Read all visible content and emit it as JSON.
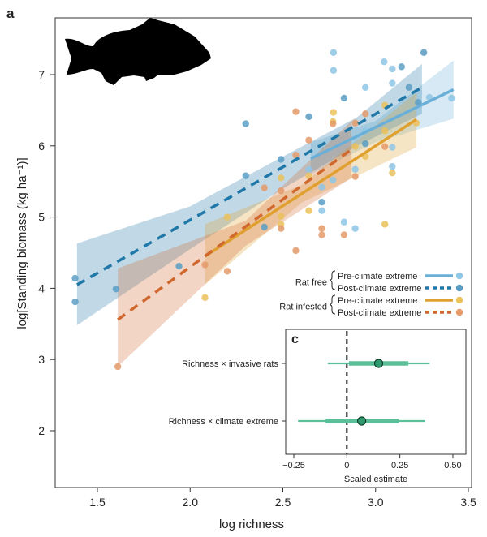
{
  "chart_data": [
    {
      "type": "scatter",
      "panel_label": "a",
      "xlabel": "log richness",
      "ylabel": "log[Standing biomass (kg ha⁻¹)]",
      "xlim": [
        1.28,
        3.55
      ],
      "ylim": [
        1.3,
        7.8
      ],
      "xticks": [
        "1.5",
        "2.0",
        "2.5",
        "3.0",
        "3.5"
      ],
      "yticks": [
        "2",
        "3",
        "4",
        "5",
        "6",
        "7"
      ],
      "legend_placement": "right",
      "series": [
        {
          "name": "Rat free — Pre-climate extreme",
          "group": "Rat free",
          "period": "Pre-climate extreme",
          "color": "#6aafd8",
          "point_color": "#8ec6e6",
          "dash": false,
          "points": [
            [
              2.773,
              7.31
            ],
            [
              2.773,
              7.06
            ],
            [
              3.046,
              7.18
            ],
            [
              3.09,
              7.08
            ],
            [
              2.945,
              6.82
            ],
            [
              3.09,
              6.88
            ],
            [
              3.41,
              6.67
            ],
            [
              3.29,
              6.68
            ],
            [
              2.64,
              5.67
            ],
            [
              2.89,
              5.67
            ],
            [
              2.77,
              5.52
            ],
            [
              2.71,
              5.42
            ],
            [
              2.71,
              5.09
            ],
            [
              2.83,
              4.93
            ],
            [
              2.89,
              4.84
            ],
            [
              3.09,
              5.98
            ],
            [
              3.09,
              5.71
            ],
            [
              2.945,
              6.21
            ]
          ],
          "line": [
            [
              2.65,
              5.82
            ],
            [
              3.42,
              6.79
            ]
          ],
          "band": [
            [
              2.65,
              5.6,
              6.05
            ],
            [
              3.0,
              6.05,
              6.35
            ],
            [
              3.42,
              6.38,
              7.2
            ]
          ]
        },
        {
          "name": "Rat free — Post-climate extreme",
          "group": "Rat free",
          "period": "Post-climate extreme",
          "color": "#1f78a8",
          "point_color": "#5a9dc4",
          "dash": true,
          "points": [
            [
              3.26,
              7.31
            ],
            [
              3.14,
              7.11
            ],
            [
              3.18,
              6.82
            ],
            [
              2.83,
              6.67
            ],
            [
              2.3,
              6.31
            ],
            [
              2.64,
              6.41
            ],
            [
              2.49,
              5.81
            ],
            [
              2.3,
              5.58
            ],
            [
              2.71,
              5.21
            ],
            [
              2.4,
              4.86
            ],
            [
              1.94,
              4.31
            ],
            [
              1.6,
              3.99
            ],
            [
              1.38,
              4.14
            ],
            [
              1.38,
              3.81
            ],
            [
              2.945,
              6.03
            ],
            [
              3.23,
              6.61
            ]
          ],
          "line": [
            [
              1.39,
              4.05
            ],
            [
              3.25,
              6.82
            ]
          ],
          "band": [
            [
              1.39,
              3.48,
              4.63
            ],
            [
              2.0,
              4.55,
              5.15
            ],
            [
              2.5,
              5.4,
              5.85
            ],
            [
              2.9,
              6.0,
              6.4
            ],
            [
              3.25,
              6.45,
              7.15
            ]
          ]
        },
        {
          "name": "Rat infested — Pre-climate extreme",
          "group": "Rat infested",
          "period": "Pre-climate extreme",
          "color": "#e0a030",
          "point_color": "#ebc15a",
          "dash": false,
          "points": [
            [
              2.773,
              6.47
            ],
            [
              3.05,
              6.57
            ],
            [
              3.05,
              6.21
            ],
            [
              3.22,
              6.32
            ],
            [
              2.64,
              5.58
            ],
            [
              2.49,
              5.55
            ],
            [
              2.49,
              5.01
            ],
            [
              2.49,
              4.9
            ],
            [
              2.64,
              5.09
            ],
            [
              3.05,
              4.9
            ],
            [
              3.09,
              5.62
            ],
            [
              2.2,
              5.0
            ],
            [
              2.08,
              3.87
            ],
            [
              2.89,
              5.99
            ],
            [
              2.945,
              5.85
            ],
            [
              2.77,
              6.34
            ]
          ],
          "line": [
            [
              2.08,
              4.45
            ],
            [
              3.22,
              6.37
            ]
          ],
          "band": [
            [
              2.08,
              4.05,
              4.9
            ],
            [
              2.6,
              5.2,
              5.45
            ],
            [
              3.22,
              5.98,
              6.75
            ]
          ]
        },
        {
          "name": "Rat infested — Post-climate extreme",
          "group": "Rat infested",
          "period": "Post-climate extreme",
          "color": "#d0682e",
          "point_color": "#e59a68",
          "dash": true,
          "points": [
            [
              2.57,
              6.48
            ],
            [
              2.64,
              6.08
            ],
            [
              2.57,
              5.87
            ],
            [
              2.89,
              6.32
            ],
            [
              2.945,
              6.45
            ],
            [
              3.05,
              5.99
            ],
            [
              2.89,
              5.57
            ],
            [
              2.4,
              5.41
            ],
            [
              2.49,
              5.37
            ],
            [
              2.49,
              4.84
            ],
            [
              2.71,
              4.84
            ],
            [
              2.71,
              4.75
            ],
            [
              2.83,
              4.75
            ],
            [
              2.57,
              4.53
            ],
            [
              2.08,
              4.33
            ],
            [
              2.2,
              4.24
            ],
            [
              1.61,
              2.9
            ],
            [
              2.77,
              6.31
            ]
          ],
          "line": [
            [
              1.61,
              3.56
            ],
            [
              2.87,
              5.95
            ]
          ],
          "band": [
            [
              1.61,
              2.9,
              4.28
            ],
            [
              2.3,
              4.6,
              4.95
            ],
            [
              2.87,
              5.55,
              6.35
            ]
          ]
        }
      ],
      "legend": {
        "groups": [
          {
            "label": "Rat free",
            "items": [
              "Pre-climate extreme",
              "Post-climate extreme"
            ]
          },
          {
            "label": "Rat infested",
            "items": [
              "Pre-climate extreme",
              "Post-climate extreme"
            ]
          }
        ]
      }
    },
    {
      "type": "forest",
      "panel_label": "c",
      "xlabel": "Scaled estimate",
      "xlim": [
        -0.3,
        0.55
      ],
      "xticks": [
        -0.25,
        0,
        0.25,
        0.5
      ],
      "xtick_labels": [
        "−0.25",
        "0",
        "0.25",
        "0.50"
      ],
      "color": "#5bbf9a",
      "point_color": "#2e9a6e",
      "rows": [
        {
          "label": "Richness × invasive rats",
          "estimate": 0.15,
          "inner": [
            0.01,
            0.29
          ],
          "outer": [
            -0.09,
            0.39
          ]
        },
        {
          "label": "Richness × climate extreme",
          "estimate": 0.07,
          "inner": [
            -0.1,
            0.245
          ],
          "outer": [
            -0.23,
            0.37
          ]
        }
      ]
    }
  ]
}
